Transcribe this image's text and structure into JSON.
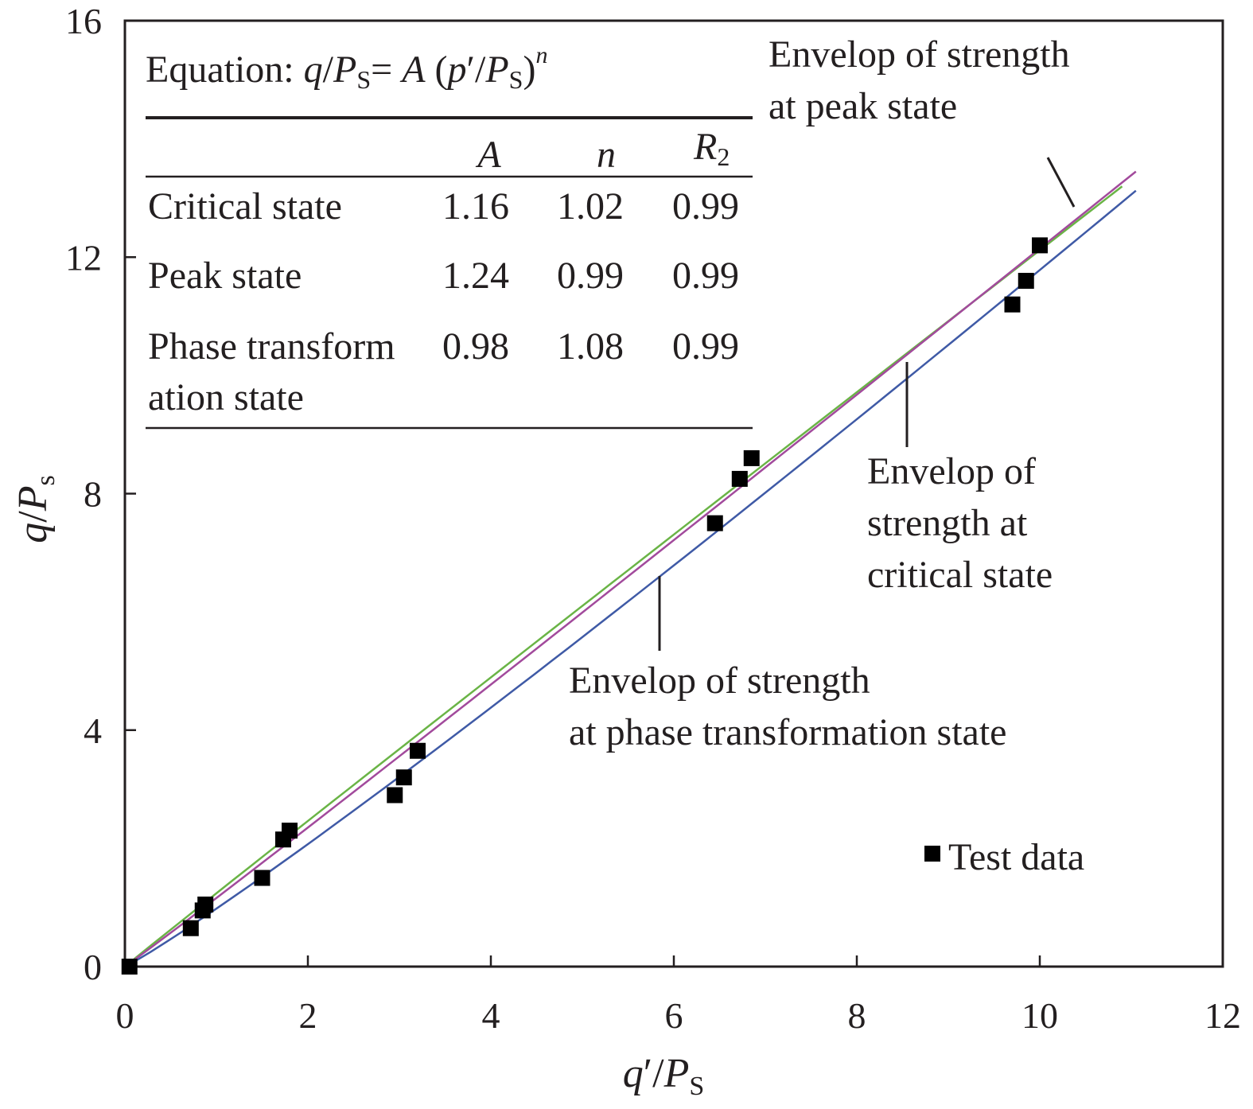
{
  "chart_data": {
    "type": "scatter",
    "xlabel": {
      "q": "q",
      "prime": "′",
      "slash": "/",
      "P": "P",
      "sub": "S"
    },
    "ylabel": {
      "q": "q",
      "slash": "/",
      "P": "P",
      "sub": "s"
    },
    "xlim": [
      0,
      12
    ],
    "ylim": [
      0,
      16
    ],
    "xticks": [
      0,
      2,
      4,
      6,
      8,
      10,
      12
    ],
    "yticks": [
      0,
      4,
      8,
      12,
      16
    ],
    "grid": false,
    "series": [
      {
        "name": "Test data",
        "kind": "points",
        "color": "#000000",
        "points": [
          [
            0.05,
            0.0
          ],
          [
            0.72,
            0.65
          ],
          [
            0.85,
            0.95
          ],
          [
            0.88,
            1.05
          ],
          [
            1.5,
            1.5
          ],
          [
            1.73,
            2.15
          ],
          [
            1.8,
            2.3
          ],
          [
            2.95,
            2.9
          ],
          [
            3.05,
            3.2
          ],
          [
            3.2,
            3.65
          ],
          [
            6.45,
            7.5
          ],
          [
            6.72,
            8.25
          ],
          [
            6.85,
            8.6
          ],
          [
            9.7,
            11.2
          ],
          [
            9.85,
            11.6
          ],
          [
            10.0,
            12.2
          ]
        ]
      },
      {
        "name": "Envelop of strength at peak state",
        "kind": "line",
        "color": "#6ab446",
        "A": 1.24,
        "n": 0.99,
        "x_range": [
          0.1,
          10.9
        ]
      },
      {
        "name": "Envelop of strength at critical state",
        "kind": "line",
        "color": "#a24a9c",
        "A": 1.16,
        "n": 1.02,
        "x_range": [
          0.1,
          11.05
        ]
      },
      {
        "name": "Envelop of strength at phase transformation state",
        "kind": "line",
        "color": "#3f5aa6",
        "A": 0.98,
        "n": 1.08,
        "x_range": [
          0.1,
          11.05
        ]
      }
    ],
    "annotations": {
      "peak": [
        "Envelop of strength",
        "at peak state"
      ],
      "critical": [
        "Envelop of",
        "strength at",
        "critical state"
      ],
      "phase": [
        "Envelop of strength",
        "at phase transformation state"
      ]
    },
    "legend": {
      "label": "Test data",
      "position": "bottom-right"
    },
    "table": {
      "equation": {
        "prefix": "Equation: ",
        "q": "q",
        "slash": "/",
        "P": "P",
        "sub": "S",
        "eq": "= ",
        "A": "A",
        "open": " (",
        "p": "p",
        "prime": "′",
        "close": ")",
        "n": "n"
      },
      "headers": {
        "A": "A",
        "n": "n",
        "R": "R",
        "R_sub": "2"
      },
      "rows": [
        {
          "label": [
            "Critical state"
          ],
          "A": "1.16",
          "n": "1.02",
          "R2": "0.99"
        },
        {
          "label": [
            "Peak state"
          ],
          "A": "1.24",
          "n": "0.99",
          "R2": "0.99"
        },
        {
          "label": [
            "Phase transform",
            "ation state"
          ],
          "A": "0.98",
          "n": "1.08",
          "R2": "0.99"
        }
      ]
    }
  }
}
